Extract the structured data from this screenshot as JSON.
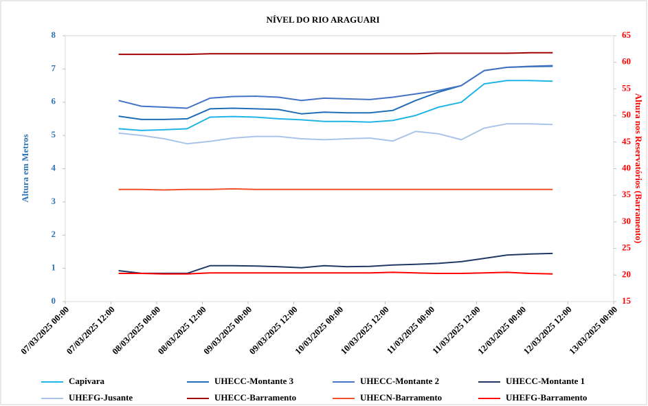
{
  "chart_data": {
    "type": "line",
    "title": "NÍVEL DO RIO ARAGUARI",
    "y_label": "Altura em Metros",
    "y2_label": "Altura nos Reservatórios (Barramento)",
    "x": [
      "07/03/2025 14:00",
      "07/03/2025 20:00",
      "08/03/2025 02:00",
      "08/03/2025 08:00",
      "08/03/2025 14:00",
      "08/03/2025 20:00",
      "09/03/2025 02:00",
      "09/03/2025 08:00",
      "09/03/2025 14:00",
      "09/03/2025 20:00",
      "10/03/2025 02:00",
      "10/03/2025 08:00",
      "10/03/2025 14:00",
      "10/03/2025 20:00",
      "11/03/2025 02:00",
      "11/03/2025 08:00",
      "11/03/2025 14:00",
      "11/03/2025 20:00",
      "12/03/2025 02:00",
      "12/03/2025 08:00"
    ],
    "xlim": [
      "07/03/2025 00:00",
      "13/03/2025 00:00"
    ],
    "xticks": [
      "07/03/2025 00:00",
      "07/03/2025 12:00",
      "08/03/2025 00:00",
      "08/03/2025 12:00",
      "09/03/2025 00:00",
      "09/03/2025 12:00",
      "10/03/2025 00:00",
      "10/03/2025 12:00",
      "11/03/2025 00:00",
      "11/03/2025 12:00",
      "12/03/2025 00:00",
      "12/03/2025 12:00",
      "13/03/2025 00:00"
    ],
    "ylim": [
      0,
      8
    ],
    "yticks": [
      0,
      1,
      2,
      3,
      4,
      5,
      6,
      7,
      8
    ],
    "y2lim": [
      15,
      65
    ],
    "y2ticks": [
      15,
      20,
      25,
      30,
      35,
      40,
      45,
      50,
      55,
      60,
      65
    ],
    "grid": false,
    "series": [
      {
        "name": "Capivara",
        "color": "#1fb4e6",
        "values": [
          5.2,
          5.15,
          5.17,
          5.2,
          5.55,
          5.57,
          5.55,
          5.5,
          5.47,
          5.42,
          5.42,
          5.4,
          5.45,
          5.6,
          5.85,
          6.0,
          6.55,
          6.65,
          6.65,
          6.63
        ]
      },
      {
        "name": "UHECC-Montante 3",
        "color": "#1f6eb5",
        "values": [
          5.58,
          5.48,
          5.48,
          5.5,
          5.8,
          5.82,
          5.8,
          5.78,
          5.65,
          5.7,
          5.68,
          5.68,
          5.75,
          6.05,
          6.3,
          6.5,
          6.95,
          7.05,
          7.07,
          7.08
        ]
      },
      {
        "name": "UHECC-Montante 2",
        "color": "#4472c4",
        "values": [
          6.05,
          5.88,
          5.85,
          5.82,
          6.12,
          6.17,
          6.18,
          6.15,
          6.05,
          6.12,
          6.1,
          6.08,
          6.15,
          6.25,
          6.35,
          6.5,
          6.95,
          7.05,
          7.08,
          7.1
        ]
      },
      {
        "name": "UHECC-Montante 1",
        "color": "#1f3864",
        "values": [
          0.93,
          0.85,
          0.85,
          0.85,
          1.08,
          1.08,
          1.07,
          1.05,
          1.02,
          1.08,
          1.05,
          1.06,
          1.1,
          1.12,
          1.15,
          1.2,
          1.3,
          1.4,
          1.43,
          1.45
        ]
      },
      {
        "name": "UHEFG-Jusante",
        "color": "#a9c4e8",
        "values": [
          5.07,
          5.0,
          4.9,
          4.75,
          4.82,
          4.92,
          4.97,
          4.97,
          4.9,
          4.87,
          4.9,
          4.92,
          4.83,
          5.12,
          5.05,
          4.87,
          5.22,
          5.35,
          5.35,
          5.33
        ]
      },
      {
        "name": "UHECC-Barramento",
        "color": "#a00000",
        "axis": "y2",
        "values": [
          61.5,
          61.5,
          61.5,
          61.5,
          61.6,
          61.6,
          61.6,
          61.6,
          61.6,
          61.6,
          61.6,
          61.6,
          61.6,
          61.6,
          61.7,
          61.7,
          61.7,
          61.7,
          61.8,
          61.8
        ]
      },
      {
        "name": "UHECN-Barramento",
        "color": "#f0502a",
        "axis": "y2",
        "values": [
          36.1,
          36.1,
          36.0,
          36.1,
          36.1,
          36.2,
          36.1,
          36.1,
          36.1,
          36.1,
          36.1,
          36.1,
          36.1,
          36.1,
          36.1,
          36.1,
          36.1,
          36.1,
          36.1,
          36.1
        ]
      },
      {
        "name": "UHEFG-Barramento",
        "color": "#ff0000",
        "axis": "y2",
        "values": [
          20.3,
          20.3,
          20.2,
          20.2,
          20.4,
          20.4,
          20.4,
          20.4,
          20.4,
          20.4,
          20.4,
          20.4,
          20.5,
          20.4,
          20.3,
          20.3,
          20.4,
          20.5,
          20.3,
          20.2
        ]
      }
    ]
  }
}
